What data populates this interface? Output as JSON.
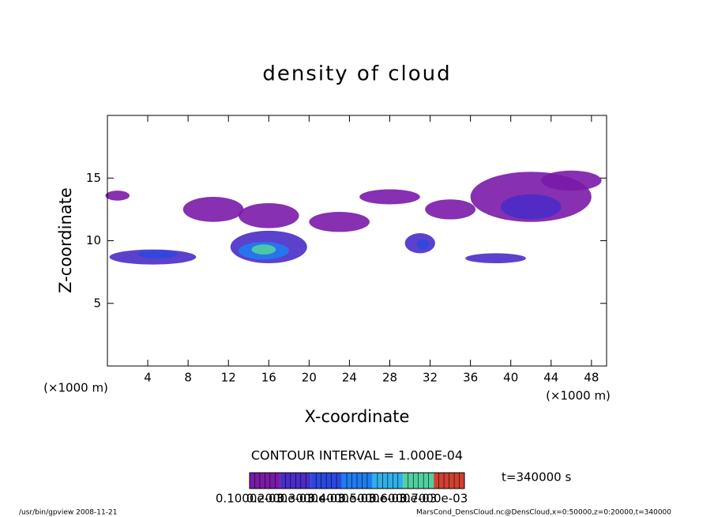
{
  "chart_data": {
    "type": "contour",
    "title": "density of cloud",
    "x_label": "X-coordinate",
    "y_label": "Z-coordinate",
    "x_unit_label": "(×1000 m)",
    "y_unit_label": "(×1000 m)",
    "xlim": [
      0,
      49.5
    ],
    "ylim": [
      0,
      20
    ],
    "xticks": [
      4,
      8,
      12,
      16,
      20,
      24,
      28,
      32,
      36,
      40,
      44,
      48
    ],
    "yticks": [
      5,
      10,
      15
    ],
    "contour_interval_label": "CONTOUR INTERVAL = 1.000E-04",
    "time_label": "t=340000 s",
    "levels": [
      {
        "value": 0.0001,
        "label": "0.1000e-03"
      },
      {
        "value": 0.0002,
        "label": "0.2000e-03"
      },
      {
        "value": 0.0003,
        "label": "0.3000e-03"
      },
      {
        "value": 0.0004,
        "label": "0.4000e-03"
      },
      {
        "value": 0.0005,
        "label": "0.5000e-03"
      },
      {
        "value": 0.0006,
        "label": "0.6000e-03"
      },
      {
        "value": 0.0007,
        "label": "0.7000e-03"
      }
    ],
    "level_colors": [
      "#7a1aa8",
      "#4a2cc8",
      "#2a48e0",
      "#1f7cf0",
      "#30b0e8",
      "#50d0a0",
      "#d04030"
    ],
    "patches": [
      {
        "x": 4.5,
        "z": 8.7,
        "rx": 4.3,
        "rz": 0.6,
        "density": 0.0002
      },
      {
        "x": 5,
        "z": 8.9,
        "rx": 2,
        "rz": 0.3,
        "density": 0.0003
      },
      {
        "x": 1,
        "z": 13.6,
        "rx": 1.2,
        "rz": 0.4,
        "density": 0.0001
      },
      {
        "x": 10.5,
        "z": 12.5,
        "rx": 3,
        "rz": 1,
        "density": 0.0001
      },
      {
        "x": 16,
        "z": 12,
        "rx": 3,
        "rz": 1,
        "density": 0.0001
      },
      {
        "x": 16,
        "z": 9.5,
        "rx": 3.8,
        "rz": 1.3,
        "density": 0.0002
      },
      {
        "x": 15.5,
        "z": 9.2,
        "rx": 2.5,
        "rz": 0.7,
        "density": 0.0004
      },
      {
        "x": 15.5,
        "z": 9.3,
        "rx": 1.2,
        "rz": 0.4,
        "density": 0.0006
      },
      {
        "x": 23,
        "z": 11.5,
        "rx": 3,
        "rz": 0.8,
        "density": 0.0001
      },
      {
        "x": 28,
        "z": 13.5,
        "rx": 3,
        "rz": 0.6,
        "density": 0.0001
      },
      {
        "x": 31,
        "z": 9.8,
        "rx": 1.5,
        "rz": 0.8,
        "density": 0.0002
      },
      {
        "x": 31.3,
        "z": 9.7,
        "rx": 0.6,
        "rz": 0.4,
        "density": 0.0003
      },
      {
        "x": 34,
        "z": 12.5,
        "rx": 2.5,
        "rz": 0.8,
        "density": 0.0001
      },
      {
        "x": 38.5,
        "z": 8.6,
        "rx": 3,
        "rz": 0.4,
        "density": 0.0002
      },
      {
        "x": 42,
        "z": 13.5,
        "rx": 6,
        "rz": 2,
        "density": 0.0001
      },
      {
        "x": 42,
        "z": 12.7,
        "rx": 3,
        "rz": 1,
        "density": 0.0002
      },
      {
        "x": 46,
        "z": 14.8,
        "rx": 3,
        "rz": 0.8,
        "density": 0.0001
      }
    ],
    "footer_left": "/usr/bin/gpview  2008-11-21",
    "footer_right": "MarsCond_DensCloud.nc@DensCloud,x=0:50000,z=0:20000,t=340000"
  }
}
